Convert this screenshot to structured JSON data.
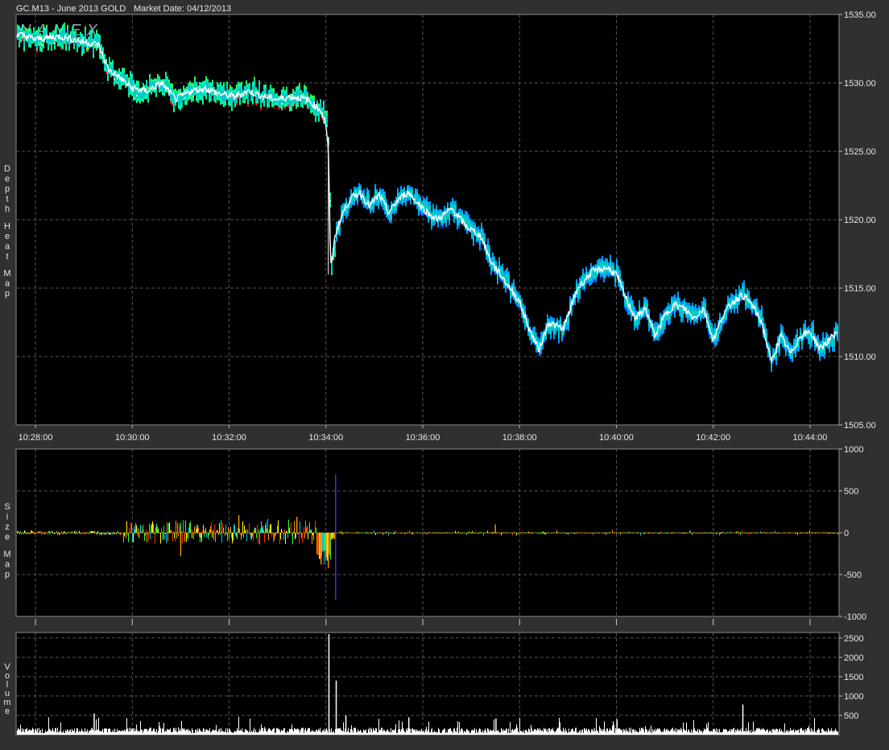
{
  "header": {
    "symbol": "GC.M13 - June 2013 GOLD",
    "market_date": "Market Date: 04/12/2013",
    "watermark": "NANEX"
  },
  "colors": {
    "background": "#303030",
    "plot_bg": "#000000",
    "grid": "#555555",
    "price_line": "#ffffff",
    "heat": [
      "#0033ff",
      "#0099ff",
      "#00cccc",
      "#00ff99",
      "#33ff33",
      "#ffff00",
      "#ff9900",
      "#ff0000"
    ]
  },
  "chart_data": [
    {
      "type": "line",
      "name": "Depth Heat Map",
      "ylabel": "Depth Heat Map",
      "x_tick_labels": [
        "10:28:00",
        "10:30:00",
        "10:32:00",
        "10:34:00",
        "10:36:00",
        "10:38:00",
        "10:40:00",
        "10:42:00",
        "10:44:00"
      ],
      "y_tick_labels": [
        "1535.00",
        "1530.00",
        "1525.00",
        "1520.00",
        "1515.00",
        "1510.00",
        "1505.00"
      ],
      "xlim_minutes": [
        627.6,
        644.6
      ],
      "ylim": [
        1505,
        1535
      ],
      "series": [
        {
          "name": "price",
          "x_minutes": [
            627.6,
            628.0,
            628.5,
            629.0,
            629.3,
            629.5,
            629.8,
            630.0,
            630.3,
            630.6,
            630.9,
            631.2,
            631.5,
            631.8,
            632.1,
            632.4,
            632.7,
            633.0,
            633.3,
            633.6,
            633.9,
            634.0,
            634.05,
            634.1,
            634.2,
            634.35,
            634.5,
            634.7,
            634.9,
            635.1,
            635.3,
            635.5,
            635.7,
            635.9,
            636.1,
            636.3,
            636.6,
            636.9,
            637.2,
            637.4,
            637.6,
            637.8,
            638.0,
            638.2,
            638.4,
            638.6,
            638.9,
            639.2,
            639.5,
            639.8,
            640.0,
            640.2,
            640.4,
            640.6,
            640.8,
            641.0,
            641.2,
            641.4,
            641.6,
            641.8,
            642.0,
            642.2,
            642.4,
            642.6,
            642.8,
            643.0,
            643.2,
            643.4,
            643.6,
            643.8,
            644.0,
            644.2,
            644.4,
            644.6
          ],
          "values": [
            1533.6,
            1533.2,
            1533.4,
            1533.0,
            1532.8,
            1531.0,
            1530.2,
            1529.6,
            1529.4,
            1530.0,
            1528.8,
            1529.4,
            1529.6,
            1529.2,
            1529.0,
            1529.4,
            1529.0,
            1528.8,
            1529.0,
            1528.8,
            1528.0,
            1527.0,
            1525.0,
            1516.5,
            1519.0,
            1520.5,
            1521.5,
            1522.0,
            1521.0,
            1521.8,
            1520.5,
            1521.5,
            1522.0,
            1521.2,
            1520.5,
            1520.0,
            1520.8,
            1519.5,
            1518.8,
            1517.0,
            1516.0,
            1515.0,
            1514.0,
            1512.0,
            1510.5,
            1512.5,
            1512.0,
            1515.0,
            1516.2,
            1516.5,
            1516.0,
            1514.2,
            1512.8,
            1513.5,
            1511.5,
            1513.0,
            1513.8,
            1513.5,
            1512.8,
            1513.5,
            1511.2,
            1513.0,
            1514.0,
            1514.5,
            1513.8,
            1512.5,
            1509.6,
            1511.5,
            1510.2,
            1511.5,
            1511.8,
            1510.6,
            1511.2,
            1512.0
          ]
        }
      ]
    },
    {
      "type": "bar",
      "name": "Size Map",
      "ylabel": "Size Map",
      "y_tick_labels": [
        "1000",
        "500",
        "0",
        "-500",
        "-1000"
      ],
      "ylim": [
        -1000,
        1000
      ],
      "spikes": [
        {
          "x_minutes": 634.2,
          "value": 700
        },
        {
          "x_minutes": 634.2,
          "value": -800
        },
        {
          "x_minutes": 634.05,
          "value": -420
        },
        {
          "x_minutes": 633.9,
          "value": -380
        },
        {
          "x_minutes": 633.4,
          "value": 190
        },
        {
          "x_minutes": 631.0,
          "value": -280
        },
        {
          "x_minutes": 632.2,
          "value": 210
        },
        {
          "x_minutes": 637.5,
          "value": 100
        }
      ]
    },
    {
      "type": "bar",
      "name": "Volume",
      "ylabel": "Volume",
      "y_tick_labels": [
        "2500",
        "2000",
        "1500",
        "1000",
        "500"
      ],
      "ylim": [
        0,
        2600
      ],
      "spikes": [
        {
          "x_minutes": 634.05,
          "value": 2600
        },
        {
          "x_minutes": 634.2,
          "value": 1400
        },
        {
          "x_minutes": 629.2,
          "value": 550
        },
        {
          "x_minutes": 634.4,
          "value": 500
        },
        {
          "x_minutes": 642.6,
          "value": 780
        },
        {
          "x_minutes": 635.7,
          "value": 450
        },
        {
          "x_minutes": 637.5,
          "value": 420
        },
        {
          "x_minutes": 640.0,
          "value": 400
        }
      ]
    }
  ]
}
